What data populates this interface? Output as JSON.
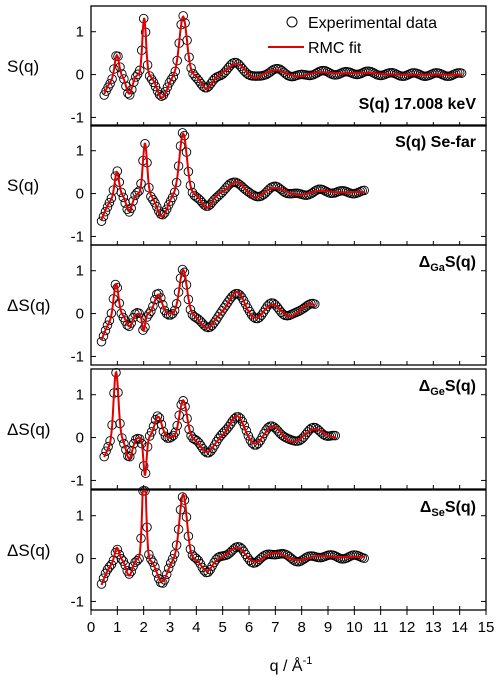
{
  "chart_data": {
    "type": "line",
    "layout": "five vertically stacked panels sharing the x axis",
    "xlabel": {
      "text": "q / Å",
      "sup": "-1"
    },
    "xlim": [
      0,
      15
    ],
    "xticks": [
      "0",
      "1",
      "2",
      "3",
      "4",
      "5",
      "6",
      "7",
      "8",
      "9",
      "10",
      "11",
      "12",
      "13",
      "14",
      "15"
    ],
    "yticks": [
      "-1",
      "0",
      "1"
    ],
    "ylim": [
      -1.2,
      1.6
    ],
    "legend": {
      "placement": "top-right of first panel",
      "items": [
        {
          "label": "Experimental data",
          "marker": "open-circle",
          "color": "#000000"
        },
        {
          "label": "RMC fit",
          "marker": "line",
          "color": "#e00000"
        }
      ]
    },
    "colors": {
      "data": "#000000",
      "fit": "#e00000"
    },
    "panels": [
      {
        "title": {
          "base": "S(q) 17.008 keV",
          "sub": "",
          "tail": ""
        },
        "ylabel": {
          "base": "S(q)",
          "prefix": ""
        },
        "qmin": 0.5,
        "qmax": 14.1,
        "peaks": [
          [
            0.98,
            0.5,
            0.08
          ],
          [
            2.02,
            1.35,
            0.07
          ],
          [
            3.5,
            1.4,
            0.14
          ],
          [
            5.55,
            0.28,
            0.3
          ],
          [
            7.0,
            0.12,
            0.4
          ],
          [
            8.6,
            0.07,
            0.5
          ],
          [
            10.3,
            0.05,
            0.5
          ]
        ],
        "dips": [
          [
            1.45,
            -0.45,
            0.12
          ],
          [
            2.7,
            -0.55,
            0.2
          ],
          [
            4.4,
            -0.35,
            0.2
          ],
          [
            6.2,
            -0.12,
            0.3
          ],
          [
            7.9,
            -0.08,
            0.4
          ]
        ]
      },
      {
        "title": {
          "base": "S(q) Se-far",
          "sub": "",
          "tail": ""
        },
        "ylabel": {
          "base": "S(q)",
          "prefix": ""
        },
        "qmin": 0.4,
        "qmax": 10.4,
        "peaks": [
          [
            0.98,
            0.55,
            0.08
          ],
          [
            2.05,
            1.2,
            0.08
          ],
          [
            3.5,
            1.45,
            0.14
          ],
          [
            5.55,
            0.3,
            0.3
          ],
          [
            7.0,
            0.15,
            0.4
          ],
          [
            8.6,
            0.08,
            0.5
          ],
          [
            10.2,
            0.04,
            0.5
          ]
        ],
        "dips": [
          [
            1.45,
            -0.4,
            0.12
          ],
          [
            2.7,
            -0.55,
            0.2
          ],
          [
            4.4,
            -0.35,
            0.2
          ],
          [
            6.2,
            -0.13,
            0.3
          ],
          [
            7.9,
            -0.08,
            0.4
          ]
        ]
      },
      {
        "title": {
          "base": "S(q)",
          "sub": "Ga",
          "tail": "Δ"
        },
        "ylabel": {
          "base": "S(q)",
          "prefix": "Δ"
        },
        "qmin": 0.4,
        "qmax": 8.5,
        "peaks": [
          [
            0.95,
            0.75,
            0.09
          ],
          [
            2.55,
            0.45,
            0.14
          ],
          [
            3.5,
            1.05,
            0.14
          ],
          [
            5.55,
            0.55,
            0.28
          ],
          [
            6.9,
            0.25,
            0.3
          ],
          [
            8.3,
            0.25,
            0.3
          ]
        ],
        "dips": [
          [
            1.45,
            -0.3,
            0.12
          ],
          [
            2.0,
            -0.4,
            0.06
          ],
          [
            4.4,
            -0.35,
            0.25
          ],
          [
            6.2,
            -0.15,
            0.3
          ],
          [
            7.5,
            -0.1,
            0.3
          ]
        ]
      },
      {
        "title": {
          "base": "S(q)",
          "sub": "Ge",
          "tail": "Δ"
        },
        "ylabel": {
          "base": "S(q)",
          "prefix": "Δ"
        },
        "qmin": 0.5,
        "qmax": 9.3,
        "peaks": [
          [
            0.95,
            1.6,
            0.09
          ],
          [
            2.55,
            0.5,
            0.14
          ],
          [
            3.5,
            0.9,
            0.14
          ],
          [
            5.55,
            0.55,
            0.28
          ],
          [
            6.9,
            0.3,
            0.3
          ],
          [
            8.5,
            0.22,
            0.3
          ]
        ],
        "dips": [
          [
            1.45,
            -0.5,
            0.12
          ],
          [
            2.05,
            -0.9,
            0.06
          ],
          [
            4.4,
            -0.35,
            0.25
          ],
          [
            6.2,
            -0.2,
            0.3
          ],
          [
            7.6,
            -0.12,
            0.3
          ]
        ]
      },
      {
        "title": {
          "base": "S(q)",
          "sub": "Se",
          "tail": "Δ"
        },
        "ylabel": {
          "base": "S(q)",
          "prefix": "Δ"
        },
        "qmin": 0.4,
        "qmax": 10.4,
        "peaks": [
          [
            0.98,
            0.3,
            0.08
          ],
          [
            2.02,
            2.25,
            0.07
          ],
          [
            3.5,
            1.55,
            0.14
          ],
          [
            5.55,
            0.28,
            0.3
          ],
          [
            7.0,
            0.15,
            0.4
          ],
          [
            8.6,
            0.08,
            0.5
          ],
          [
            10.2,
            0.05,
            0.5
          ]
        ],
        "dips": [
          [
            1.45,
            -0.4,
            0.12
          ],
          [
            2.7,
            -0.55,
            0.2
          ],
          [
            4.4,
            -0.3,
            0.2
          ],
          [
            6.2,
            -0.12,
            0.3
          ],
          [
            7.9,
            -0.08,
            0.4
          ]
        ]
      }
    ]
  }
}
